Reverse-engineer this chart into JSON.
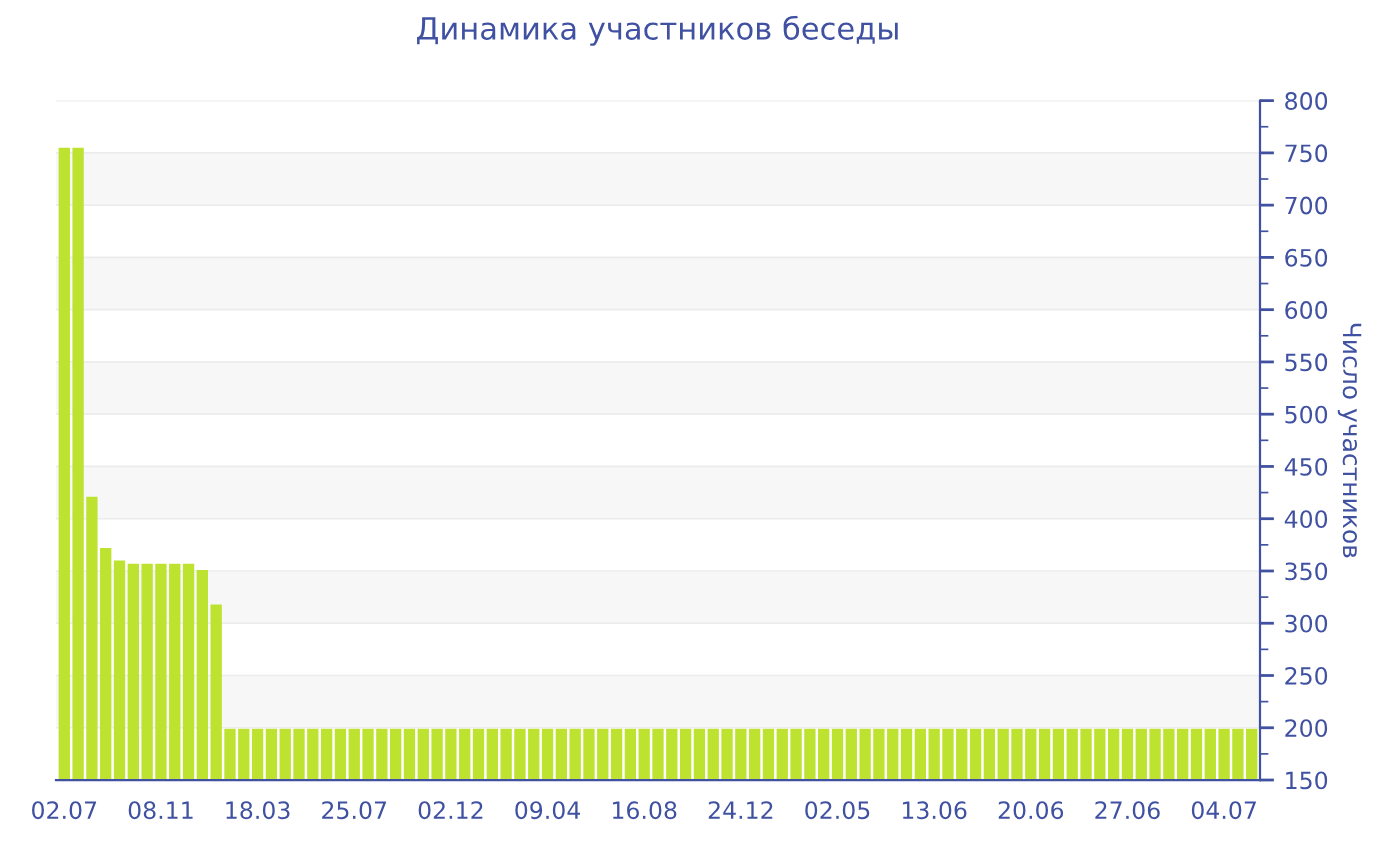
{
  "chart_data": {
    "type": "bar",
    "title": "Динамика участников беседы",
    "ylabel": "Число участников",
    "categories": [
      "02.07",
      null,
      null,
      null,
      null,
      null,
      null,
      "08.11",
      null,
      null,
      null,
      null,
      null,
      null,
      "18.03",
      null,
      null,
      null,
      null,
      null,
      null,
      "25.07",
      null,
      null,
      null,
      null,
      null,
      null,
      "02.12",
      null,
      null,
      null,
      null,
      null,
      null,
      "09.04",
      null,
      null,
      null,
      null,
      null,
      null,
      "16.08",
      null,
      null,
      null,
      null,
      null,
      null,
      "24.12",
      null,
      null,
      null,
      null,
      null,
      null,
      "02.05",
      null,
      null,
      null,
      null,
      null,
      null,
      "13.06",
      null,
      null,
      null,
      null,
      null,
      null,
      "20.06",
      null,
      null,
      null,
      null,
      null,
      null,
      "27.06",
      null,
      null,
      null,
      null,
      null,
      null,
      "04.07",
      null,
      null
    ],
    "values": [
      755,
      755,
      421,
      372,
      360,
      357,
      357,
      357,
      357,
      357,
      351,
      318,
      199,
      199,
      199,
      199,
      199,
      199,
      199,
      199,
      199,
      199,
      199,
      199,
      199,
      199,
      199,
      199,
      199,
      199,
      199,
      199,
      199,
      199,
      199,
      199,
      199,
      199,
      199,
      199,
      199,
      199,
      199,
      199,
      199,
      199,
      199,
      199,
      199,
      199,
      199,
      199,
      199,
      199,
      199,
      199,
      199,
      199,
      199,
      199,
      199,
      199,
      199,
      199,
      199,
      199,
      199,
      199,
      199,
      199,
      199,
      199,
      199,
      199,
      199,
      199,
      199,
      199,
      199,
      199,
      199,
      199,
      199,
      199,
      199,
      199,
      199
    ],
    "color": "#bde22f",
    "ylim": [
      150,
      800
    ],
    "yticks": [
      150,
      200,
      250,
      300,
      350,
      400,
      450,
      500,
      550,
      600,
      650,
      700,
      750,
      800
    ],
    "grid": "y",
    "legend": false
  }
}
